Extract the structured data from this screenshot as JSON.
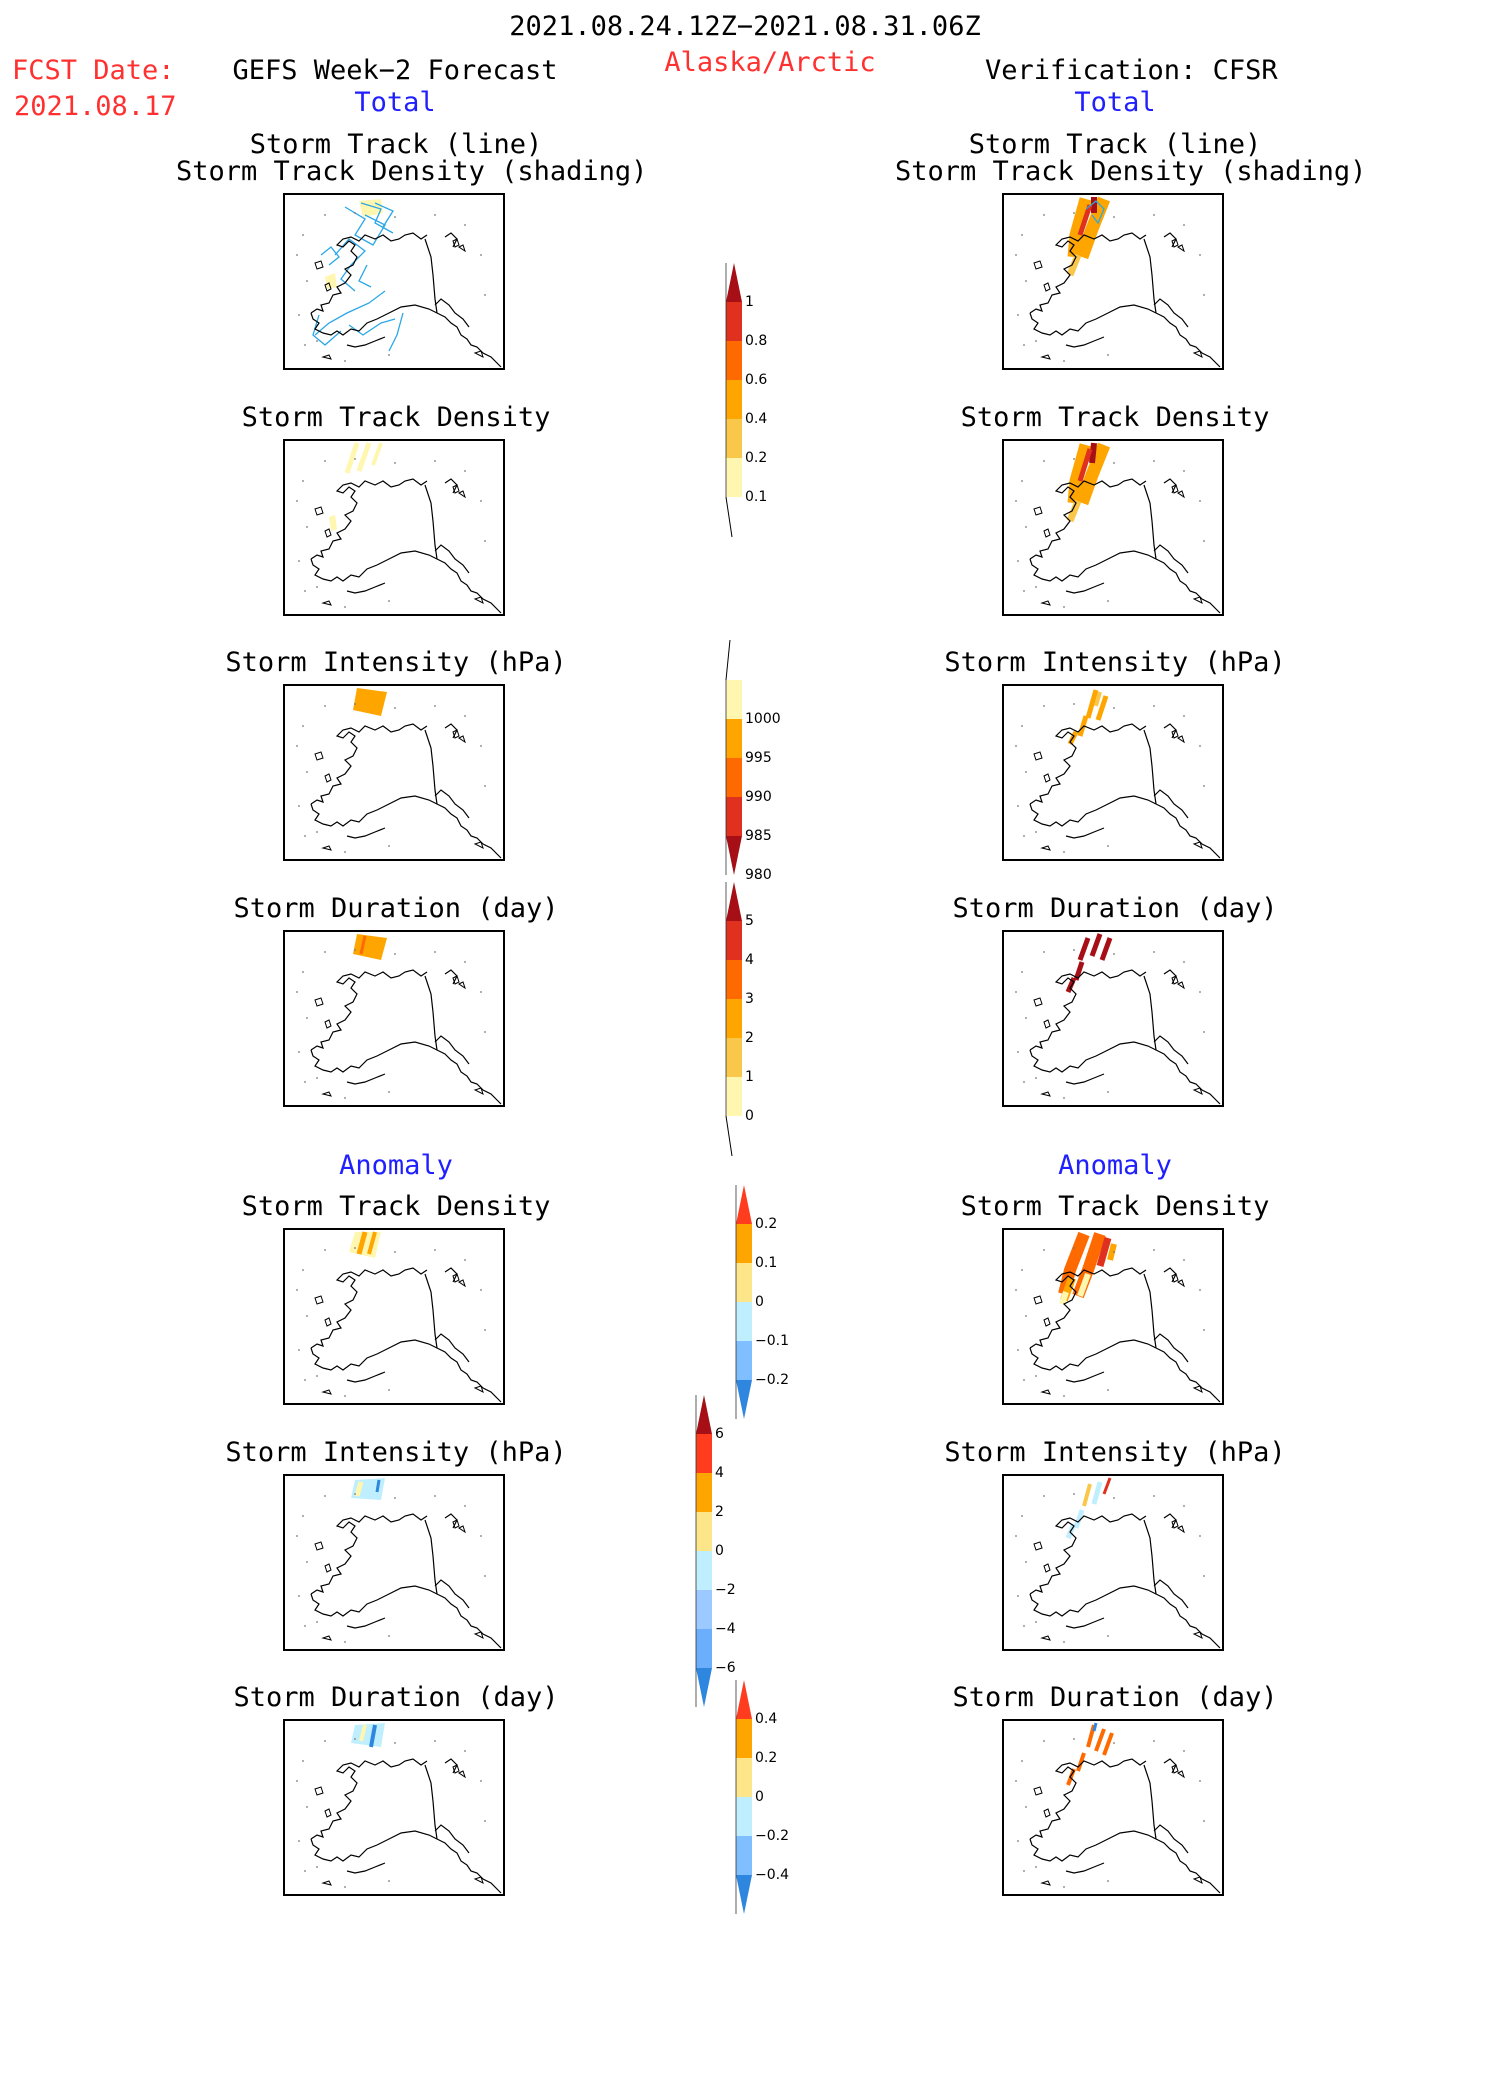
{
  "header": {
    "period": "2021.08.24.12Z−2021.08.31.06Z",
    "fcst_label": "FCST Date:",
    "fcst_date": "2021.08.17",
    "left_title": "GEFS Week−2 Forecast",
    "region": "Alaska/Arctic",
    "right_title": "Verification: CFSR",
    "left_total": "Total",
    "right_total": "Total",
    "left_anomaly": "Anomaly",
    "right_anomaly": "Anomaly"
  },
  "panel_titles": {
    "track_line": "Storm Track (line)",
    "track_shading": "Storm Track Density (shading)",
    "density": "Storm Track Density",
    "intensity": "Storm Intensity (hPa)",
    "duration": "Storm Duration (day)"
  },
  "colorbars": [
    {
      "id": "density_total",
      "labels": [
        "1",
        "0.8",
        "0.6",
        "0.4",
        "0.2",
        "0.1"
      ],
      "colors": [
        "#a50f15",
        "#e0301e",
        "#ff6a00",
        "#ffa500",
        "#f9c84a",
        "#fff6b0"
      ]
    },
    {
      "id": "intensity_total",
      "labels": [
        "1000",
        "995",
        "990",
        "985",
        "980"
      ],
      "colors": [
        "#fff6b0",
        "#ffa500",
        "#ff6a00",
        "#e0301e",
        "#a50f15"
      ]
    },
    {
      "id": "duration_total",
      "labels": [
        "5",
        "4",
        "3",
        "2",
        "1",
        "0"
      ],
      "colors": [
        "#a50f15",
        "#e0301e",
        "#ff6a00",
        "#ffa500",
        "#f9c84a",
        "#fff6b0"
      ]
    },
    {
      "id": "density_anom",
      "labels": [
        "0.2",
        "0.1",
        "0",
        "−0.1",
        "−0.2"
      ],
      "colors": [
        "#ff3c1e",
        "#ffa500",
        "#fde58a",
        "#bfefff",
        "#7fbfff",
        "#2e86de"
      ]
    },
    {
      "id": "intensity_anom",
      "labels": [
        "6",
        "4",
        "2",
        "0",
        "−2",
        "−4",
        "−6"
      ],
      "colors": [
        "#a50f15",
        "#ff3c1e",
        "#ffa500",
        "#fde58a",
        "#bfefff",
        "#9cc9ff",
        "#6aaefc",
        "#2e86de"
      ]
    },
    {
      "id": "duration_anom",
      "labels": [
        "0.4",
        "0.2",
        "0",
        "−0.2",
        "−0.4"
      ],
      "colors": [
        "#ff3c1e",
        "#ffa500",
        "#fde58a",
        "#bfefff",
        "#7fbfff",
        "#2e86de"
      ]
    }
  ],
  "palette": {
    "track_line": "#2aa7e6",
    "coast": "#000000",
    "dark_red": "#a50f15",
    "red": "#e0301e",
    "orange_red": "#ff6a00",
    "orange": "#ffa500",
    "light_orange": "#f9c84a",
    "yellow": "#fff6b0",
    "light_blue": "#bfefff",
    "blue": "#2e86de"
  }
}
